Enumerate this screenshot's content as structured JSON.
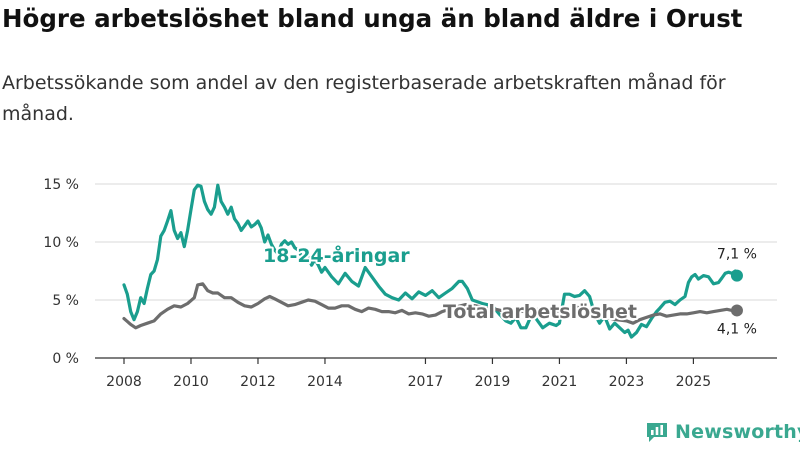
{
  "title": "Högre arbetslöshet bland unga än bland äldre i Orust",
  "subtitle": "Arbetssökande som andel av den registerbaserade arbetskraften månad för månad.",
  "brand": "Newsworthy",
  "colors": {
    "youth": "#1a9e8e",
    "total": "#6d6d6d",
    "grid": "#e0e0e0",
    "axis": "#333333",
    "brand": "#3aa890"
  },
  "chart_data": {
    "type": "line",
    "title": "Högre arbetslöshet bland unga än bland äldre i Orust",
    "ylim": [
      0,
      15
    ],
    "yticks": [
      0,
      5,
      10,
      15
    ],
    "ytick_labels": [
      "0 %",
      "5 %",
      "10 %",
      "15 %"
    ],
    "xlim": [
      2008,
      2026.6
    ],
    "xticks": [
      2008,
      2010,
      2012,
      2014,
      2017,
      2019,
      2021,
      2023,
      2025
    ],
    "xtick_labels": [
      "2008",
      "2010",
      "2012",
      "2014",
      "2017",
      "2019",
      "2021",
      "2023",
      "2025"
    ],
    "series": [
      {
        "name": "18-24-åringar",
        "color": "#1a9e8e",
        "end_label": "7,1 %",
        "points": [
          [
            2008.0,
            6.3
          ],
          [
            2008.1,
            5.5
          ],
          [
            2008.2,
            4.0
          ],
          [
            2008.3,
            3.3
          ],
          [
            2008.4,
            4.0
          ],
          [
            2008.5,
            5.2
          ],
          [
            2008.6,
            4.7
          ],
          [
            2008.7,
            6.0
          ],
          [
            2008.8,
            7.2
          ],
          [
            2008.9,
            7.5
          ],
          [
            2009.0,
            8.5
          ],
          [
            2009.1,
            10.5
          ],
          [
            2009.2,
            11.0
          ],
          [
            2009.3,
            11.8
          ],
          [
            2009.4,
            12.7
          ],
          [
            2009.5,
            11.0
          ],
          [
            2009.6,
            10.3
          ],
          [
            2009.7,
            10.8
          ],
          [
            2009.8,
            9.6
          ],
          [
            2009.9,
            11.0
          ],
          [
            2010.0,
            12.8
          ],
          [
            2010.1,
            14.5
          ],
          [
            2010.2,
            14.9
          ],
          [
            2010.3,
            14.8
          ],
          [
            2010.4,
            13.5
          ],
          [
            2010.5,
            12.8
          ],
          [
            2010.6,
            12.4
          ],
          [
            2010.7,
            13.0
          ],
          [
            2010.8,
            14.9
          ],
          [
            2010.9,
            13.5
          ],
          [
            2011.0,
            13.0
          ],
          [
            2011.1,
            12.4
          ],
          [
            2011.2,
            13.0
          ],
          [
            2011.3,
            12.0
          ],
          [
            2011.4,
            11.6
          ],
          [
            2011.5,
            11.0
          ],
          [
            2011.6,
            11.4
          ],
          [
            2011.7,
            11.8
          ],
          [
            2011.8,
            11.3
          ],
          [
            2011.9,
            11.5
          ],
          [
            2012.0,
            11.8
          ],
          [
            2012.1,
            11.2
          ],
          [
            2012.2,
            10.0
          ],
          [
            2012.3,
            10.6
          ],
          [
            2012.4,
            9.8
          ],
          [
            2012.5,
            9.3
          ],
          [
            2012.6,
            9.0
          ],
          [
            2012.7,
            9.8
          ],
          [
            2012.8,
            10.1
          ],
          [
            2012.9,
            9.8
          ],
          [
            2013.0,
            10.0
          ],
          [
            2013.1,
            9.5
          ],
          [
            2013.2,
            9.3
          ],
          [
            2013.3,
            8.8
          ],
          [
            2013.4,
            8.3
          ],
          [
            2013.5,
            8.7
          ],
          [
            2013.6,
            8.0
          ],
          [
            2013.7,
            8.5
          ],
          [
            2013.8,
            8.0
          ],
          [
            2013.9,
            7.4
          ],
          [
            2014.0,
            7.8
          ],
          [
            2014.2,
            7.0
          ],
          [
            2014.4,
            6.4
          ],
          [
            2014.6,
            7.3
          ],
          [
            2014.8,
            6.6
          ],
          [
            2015.0,
            6.2
          ],
          [
            2015.2,
            7.8
          ],
          [
            2015.4,
            7.0
          ],
          [
            2015.6,
            6.2
          ],
          [
            2015.8,
            5.5
          ],
          [
            2016.0,
            5.2
          ],
          [
            2016.2,
            5.0
          ],
          [
            2016.4,
            5.6
          ],
          [
            2016.6,
            5.1
          ],
          [
            2016.8,
            5.7
          ],
          [
            2017.0,
            5.4
          ],
          [
            2017.2,
            5.8
          ],
          [
            2017.4,
            5.2
          ],
          [
            2017.6,
            5.6
          ],
          [
            2017.8,
            6.0
          ],
          [
            2018.0,
            6.6
          ],
          [
            2018.1,
            6.6
          ],
          [
            2018.25,
            6.0
          ],
          [
            2018.4,
            5.0
          ],
          [
            2018.7,
            4.7
          ],
          [
            2019.0,
            4.5
          ],
          [
            2019.2,
            3.8
          ],
          [
            2019.4,
            3.2
          ],
          [
            2019.55,
            3.0
          ],
          [
            2019.7,
            3.5
          ],
          [
            2019.85,
            2.6
          ],
          [
            2020.0,
            2.6
          ],
          [
            2020.15,
            3.6
          ],
          [
            2020.3,
            3.4
          ],
          [
            2020.5,
            2.6
          ],
          [
            2020.7,
            3.0
          ],
          [
            2020.9,
            2.8
          ],
          [
            2021.0,
            3.0
          ],
          [
            2021.15,
            5.5
          ],
          [
            2021.3,
            5.5
          ],
          [
            2021.45,
            5.3
          ],
          [
            2021.6,
            5.4
          ],
          [
            2021.75,
            5.8
          ],
          [
            2021.9,
            5.3
          ],
          [
            2022.05,
            3.8
          ],
          [
            2022.2,
            3.0
          ],
          [
            2022.35,
            3.6
          ],
          [
            2022.5,
            2.5
          ],
          [
            2022.65,
            3.0
          ],
          [
            2022.8,
            2.6
          ],
          [
            2022.95,
            2.2
          ],
          [
            2023.05,
            2.4
          ],
          [
            2023.15,
            1.8
          ],
          [
            2023.3,
            2.2
          ],
          [
            2023.45,
            2.9
          ],
          [
            2023.6,
            2.7
          ],
          [
            2023.75,
            3.4
          ],
          [
            2023.9,
            4.0
          ],
          [
            2024.0,
            4.3
          ],
          [
            2024.15,
            4.8
          ],
          [
            2024.3,
            4.9
          ],
          [
            2024.45,
            4.6
          ],
          [
            2024.6,
            5.0
          ],
          [
            2024.75,
            5.3
          ],
          [
            2024.85,
            6.5
          ],
          [
            2024.95,
            7.0
          ],
          [
            2025.05,
            7.2
          ],
          [
            2025.15,
            6.8
          ],
          [
            2025.3,
            7.1
          ],
          [
            2025.45,
            7.0
          ],
          [
            2025.6,
            6.4
          ],
          [
            2025.75,
            6.5
          ],
          [
            2025.85,
            6.9
          ],
          [
            2025.95,
            7.3
          ],
          [
            2026.05,
            7.4
          ],
          [
            2026.15,
            7.3
          ],
          [
            2026.25,
            7.5
          ],
          [
            2026.3,
            7.1
          ]
        ]
      },
      {
        "name": "Total arbetslöshet",
        "color": "#6d6d6d",
        "end_label": "4,1 %",
        "points": [
          [
            2008.0,
            3.4
          ],
          [
            2008.2,
            2.9
          ],
          [
            2008.35,
            2.6
          ],
          [
            2008.5,
            2.8
          ],
          [
            2008.7,
            3.0
          ],
          [
            2008.9,
            3.2
          ],
          [
            2009.1,
            3.8
          ],
          [
            2009.3,
            4.2
          ],
          [
            2009.5,
            4.5
          ],
          [
            2009.7,
            4.4
          ],
          [
            2009.9,
            4.7
          ],
          [
            2010.1,
            5.2
          ],
          [
            2010.2,
            6.3
          ],
          [
            2010.35,
            6.4
          ],
          [
            2010.5,
            5.8
          ],
          [
            2010.65,
            5.6
          ],
          [
            2010.8,
            5.6
          ],
          [
            2011.0,
            5.2
          ],
          [
            2011.2,
            5.2
          ],
          [
            2011.4,
            4.8
          ],
          [
            2011.6,
            4.5
          ],
          [
            2011.8,
            4.4
          ],
          [
            2012.0,
            4.7
          ],
          [
            2012.2,
            5.1
          ],
          [
            2012.35,
            5.3
          ],
          [
            2012.5,
            5.1
          ],
          [
            2012.7,
            4.8
          ],
          [
            2012.9,
            4.5
          ],
          [
            2013.1,
            4.6
          ],
          [
            2013.3,
            4.8
          ],
          [
            2013.5,
            5.0
          ],
          [
            2013.7,
            4.9
          ],
          [
            2013.9,
            4.6
          ],
          [
            2014.1,
            4.3
          ],
          [
            2014.3,
            4.3
          ],
          [
            2014.5,
            4.5
          ],
          [
            2014.7,
            4.5
          ],
          [
            2014.9,
            4.2
          ],
          [
            2015.1,
            4.0
          ],
          [
            2015.3,
            4.3
          ],
          [
            2015.5,
            4.2
          ],
          [
            2015.7,
            4.0
          ],
          [
            2015.9,
            4.0
          ],
          [
            2016.1,
            3.9
          ],
          [
            2016.3,
            4.1
          ],
          [
            2016.5,
            3.8
          ],
          [
            2016.7,
            3.9
          ],
          [
            2016.9,
            3.8
          ],
          [
            2017.1,
            3.6
          ],
          [
            2017.3,
            3.7
          ],
          [
            2017.5,
            4.0
          ],
          [
            2017.7,
            4.2
          ],
          [
            2017.9,
            4.4
          ],
          [
            2018.2,
            4.6
          ],
          [
            2018.5,
            4.5
          ],
          [
            2018.8,
            4.3
          ],
          [
            2019.1,
            4.2
          ],
          [
            2019.4,
            4.0
          ],
          [
            2019.7,
            4.1
          ],
          [
            2020.0,
            4.0
          ],
          [
            2020.3,
            4.2
          ],
          [
            2020.6,
            4.1
          ],
          [
            2020.9,
            4.0
          ],
          [
            2021.2,
            4.3
          ],
          [
            2021.5,
            4.4
          ],
          [
            2021.8,
            4.2
          ],
          [
            2022.1,
            3.8
          ],
          [
            2022.4,
            3.5
          ],
          [
            2022.7,
            3.3
          ],
          [
            2023.0,
            3.2
          ],
          [
            2023.2,
            3.0
          ],
          [
            2023.4,
            3.3
          ],
          [
            2023.6,
            3.5
          ],
          [
            2023.8,
            3.7
          ],
          [
            2024.0,
            3.8
          ],
          [
            2024.2,
            3.6
          ],
          [
            2024.4,
            3.7
          ],
          [
            2024.6,
            3.8
          ],
          [
            2024.8,
            3.8
          ],
          [
            2025.0,
            3.9
          ],
          [
            2025.2,
            4.0
          ],
          [
            2025.4,
            3.9
          ],
          [
            2025.6,
            4.0
          ],
          [
            2025.8,
            4.1
          ],
          [
            2026.0,
            4.2
          ],
          [
            2026.15,
            4.1
          ],
          [
            2026.3,
            4.1
          ]
        ]
      }
    ]
  }
}
